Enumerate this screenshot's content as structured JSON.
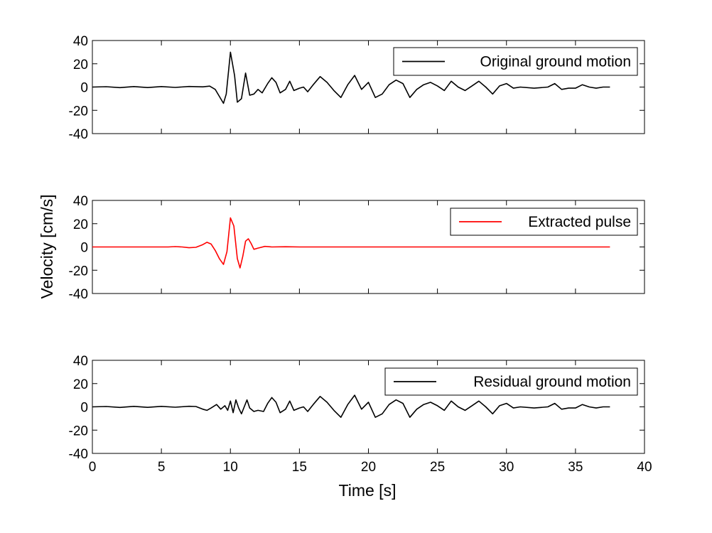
{
  "figure": {
    "ylabel": "Velocity [cm/s]",
    "xlabel": "Time [s]"
  },
  "chart_data": [
    {
      "type": "line",
      "title": "",
      "xlabel": "",
      "ylabel": "",
      "xlim": [
        0,
        40
      ],
      "ylim": [
        -40,
        40
      ],
      "x_ticks": [
        0,
        5,
        10,
        15,
        20,
        25,
        30,
        35,
        40
      ],
      "y_ticks": [
        40,
        20,
        0,
        -20,
        -40
      ],
      "y_tick_labels": [
        "40",
        "20",
        "0",
        "-20",
        "-40"
      ],
      "x_tick_labels_shown": false,
      "grid": false,
      "legend_position": "top-right",
      "series": [
        {
          "name": "Original ground motion",
          "color": "#000000",
          "points": [
            [
              0,
              0
            ],
            [
              1,
              0.3
            ],
            [
              2,
              -0.5
            ],
            [
              3,
              0.4
            ],
            [
              4,
              -0.4
            ],
            [
              5,
              0.4
            ],
            [
              6,
              -0.3
            ],
            [
              7,
              0.5
            ],
            [
              8,
              0.2
            ],
            [
              8.5,
              0.8
            ],
            [
              8.9,
              -2
            ],
            [
              9.2,
              -8
            ],
            [
              9.5,
              -14
            ],
            [
              9.7,
              -6
            ],
            [
              10,
              30
            ],
            [
              10.3,
              10
            ],
            [
              10.5,
              -13
            ],
            [
              10.8,
              -10
            ],
            [
              11.1,
              12
            ],
            [
              11.4,
              -7
            ],
            [
              11.7,
              -6
            ],
            [
              12,
              -2
            ],
            [
              12.3,
              -5
            ],
            [
              12.7,
              3
            ],
            [
              13,
              8
            ],
            [
              13.3,
              4
            ],
            [
              13.6,
              -5
            ],
            [
              14,
              -2
            ],
            [
              14.3,
              5
            ],
            [
              14.6,
              -3
            ],
            [
              15,
              -1
            ],
            [
              15.3,
              0
            ],
            [
              15.6,
              -4
            ],
            [
              16,
              2
            ],
            [
              16.5,
              9
            ],
            [
              17,
              4
            ],
            [
              17.5,
              -3
            ],
            [
              18,
              -9
            ],
            [
              18.5,
              2
            ],
            [
              19,
              10
            ],
            [
              19.5,
              -2
            ],
            [
              20,
              4
            ],
            [
              20.5,
              -9
            ],
            [
              21,
              -6
            ],
            [
              21.5,
              2
            ],
            [
              22,
              6
            ],
            [
              22.5,
              3
            ],
            [
              23,
              -9
            ],
            [
              23.5,
              -2
            ],
            [
              24,
              2
            ],
            [
              24.5,
              4
            ],
            [
              25,
              1
            ],
            [
              25.5,
              -3
            ],
            [
              26,
              5
            ],
            [
              26.5,
              0
            ],
            [
              27,
              -3
            ],
            [
              27.5,
              1
            ],
            [
              28,
              5
            ],
            [
              28.5,
              0
            ],
            [
              29,
              -6
            ],
            [
              29.5,
              1
            ],
            [
              30,
              3
            ],
            [
              30.5,
              -1
            ],
            [
              31,
              0
            ],
            [
              32,
              -1
            ],
            [
              33,
              0
            ],
            [
              33.5,
              3
            ],
            [
              34,
              -2
            ],
            [
              34.5,
              -1
            ],
            [
              35,
              -1
            ],
            [
              35.5,
              2
            ],
            [
              36,
              0
            ],
            [
              36.5,
              -1
            ],
            [
              37,
              0
            ],
            [
              37.5,
              0
            ]
          ]
        }
      ]
    },
    {
      "type": "line",
      "title": "",
      "xlabel": "",
      "ylabel": "",
      "xlim": [
        0,
        40
      ],
      "ylim": [
        -40,
        40
      ],
      "x_ticks": [
        0,
        5,
        10,
        15,
        20,
        25,
        30,
        35,
        40
      ],
      "y_ticks": [
        40,
        20,
        0,
        -20,
        -40
      ],
      "y_tick_labels": [
        "40",
        "20",
        "0",
        "-20",
        "-40"
      ],
      "x_tick_labels_shown": false,
      "grid": false,
      "legend_position": "top-right",
      "series": [
        {
          "name": "Extracted pulse",
          "color": "#ff0000",
          "points": [
            [
              0,
              0
            ],
            [
              5.5,
              0
            ],
            [
              6,
              0.3
            ],
            [
              6.5,
              0
            ],
            [
              7,
              -0.7
            ],
            [
              7.5,
              -0.3
            ],
            [
              8,
              2
            ],
            [
              8.3,
              4
            ],
            [
              8.6,
              2.5
            ],
            [
              8.9,
              -3
            ],
            [
              9.2,
              -10
            ],
            [
              9.5,
              -15
            ],
            [
              9.75,
              -4
            ],
            [
              10,
              25
            ],
            [
              10.25,
              18
            ],
            [
              10.5,
              -10
            ],
            [
              10.7,
              -18
            ],
            [
              10.9,
              -8
            ],
            [
              11.1,
              5
            ],
            [
              11.3,
              7
            ],
            [
              11.5,
              3
            ],
            [
              11.7,
              -2
            ],
            [
              12,
              -1
            ],
            [
              12.5,
              0.5
            ],
            [
              13,
              0
            ],
            [
              14,
              0.2
            ],
            [
              15,
              0
            ],
            [
              37.5,
              0
            ]
          ]
        }
      ]
    },
    {
      "type": "line",
      "title": "",
      "xlabel": "Time [s]",
      "ylabel": "",
      "xlim": [
        0,
        40
      ],
      "ylim": [
        -40,
        40
      ],
      "x_ticks": [
        0,
        5,
        10,
        15,
        20,
        25,
        30,
        35,
        40
      ],
      "x_tick_labels": [
        "0",
        "5",
        "10",
        "15",
        "20",
        "25",
        "30",
        "35",
        "40"
      ],
      "y_ticks": [
        40,
        20,
        0,
        -20,
        -40
      ],
      "y_tick_labels": [
        "40",
        "20",
        "0",
        "-20",
        "-40"
      ],
      "x_tick_labels_shown": true,
      "grid": false,
      "legend_position": "top-right",
      "series": [
        {
          "name": "Residual ground motion",
          "color": "#000000",
          "points": [
            [
              0,
              0
            ],
            [
              1,
              0.3
            ],
            [
              2,
              -0.5
            ],
            [
              3,
              0.4
            ],
            [
              4,
              -0.4
            ],
            [
              5,
              0.4
            ],
            [
              6,
              -0.3
            ],
            [
              7,
              0.5
            ],
            [
              7.5,
              0.3
            ],
            [
              8,
              -2
            ],
            [
              8.3,
              -3
            ],
            [
              8.6,
              -1
            ],
            [
              9,
              2
            ],
            [
              9.3,
              -2
            ],
            [
              9.6,
              1
            ],
            [
              9.8,
              -3
            ],
            [
              10,
              5
            ],
            [
              10.2,
              -5
            ],
            [
              10.4,
              6
            ],
            [
              10.6,
              -1
            ],
            [
              10.8,
              -6
            ],
            [
              11,
              0
            ],
            [
              11.2,
              6
            ],
            [
              11.4,
              -1
            ],
            [
              11.7,
              -4
            ],
            [
              12,
              -3
            ],
            [
              12.4,
              -4
            ],
            [
              12.7,
              3
            ],
            [
              13,
              8
            ],
            [
              13.3,
              4
            ],
            [
              13.6,
              -5
            ],
            [
              14,
              -2
            ],
            [
              14.3,
              5
            ],
            [
              14.6,
              -3
            ],
            [
              15,
              -1
            ],
            [
              15.3,
              0
            ],
            [
              15.6,
              -4
            ],
            [
              16,
              2
            ],
            [
              16.5,
              9
            ],
            [
              17,
              4
            ],
            [
              17.5,
              -3
            ],
            [
              18,
              -9
            ],
            [
              18.5,
              2
            ],
            [
              19,
              10
            ],
            [
              19.5,
              -2
            ],
            [
              20,
              4
            ],
            [
              20.5,
              -9
            ],
            [
              21,
              -6
            ],
            [
              21.5,
              2
            ],
            [
              22,
              6
            ],
            [
              22.5,
              3
            ],
            [
              23,
              -9
            ],
            [
              23.5,
              -2
            ],
            [
              24,
              2
            ],
            [
              24.5,
              4
            ],
            [
              25,
              1
            ],
            [
              25.5,
              -3
            ],
            [
              26,
              5
            ],
            [
              26.5,
              0
            ],
            [
              27,
              -3
            ],
            [
              27.5,
              1
            ],
            [
              28,
              5
            ],
            [
              28.5,
              0
            ],
            [
              29,
              -6
            ],
            [
              29.5,
              1
            ],
            [
              30,
              3
            ],
            [
              30.5,
              -1
            ],
            [
              31,
              0
            ],
            [
              32,
              -1
            ],
            [
              33,
              0
            ],
            [
              33.5,
              3
            ],
            [
              34,
              -2
            ],
            [
              34.5,
              -1
            ],
            [
              35,
              -1
            ],
            [
              35.5,
              2
            ],
            [
              36,
              0
            ],
            [
              36.5,
              -1
            ],
            [
              37,
              0
            ],
            [
              37.5,
              0
            ]
          ]
        }
      ]
    }
  ]
}
